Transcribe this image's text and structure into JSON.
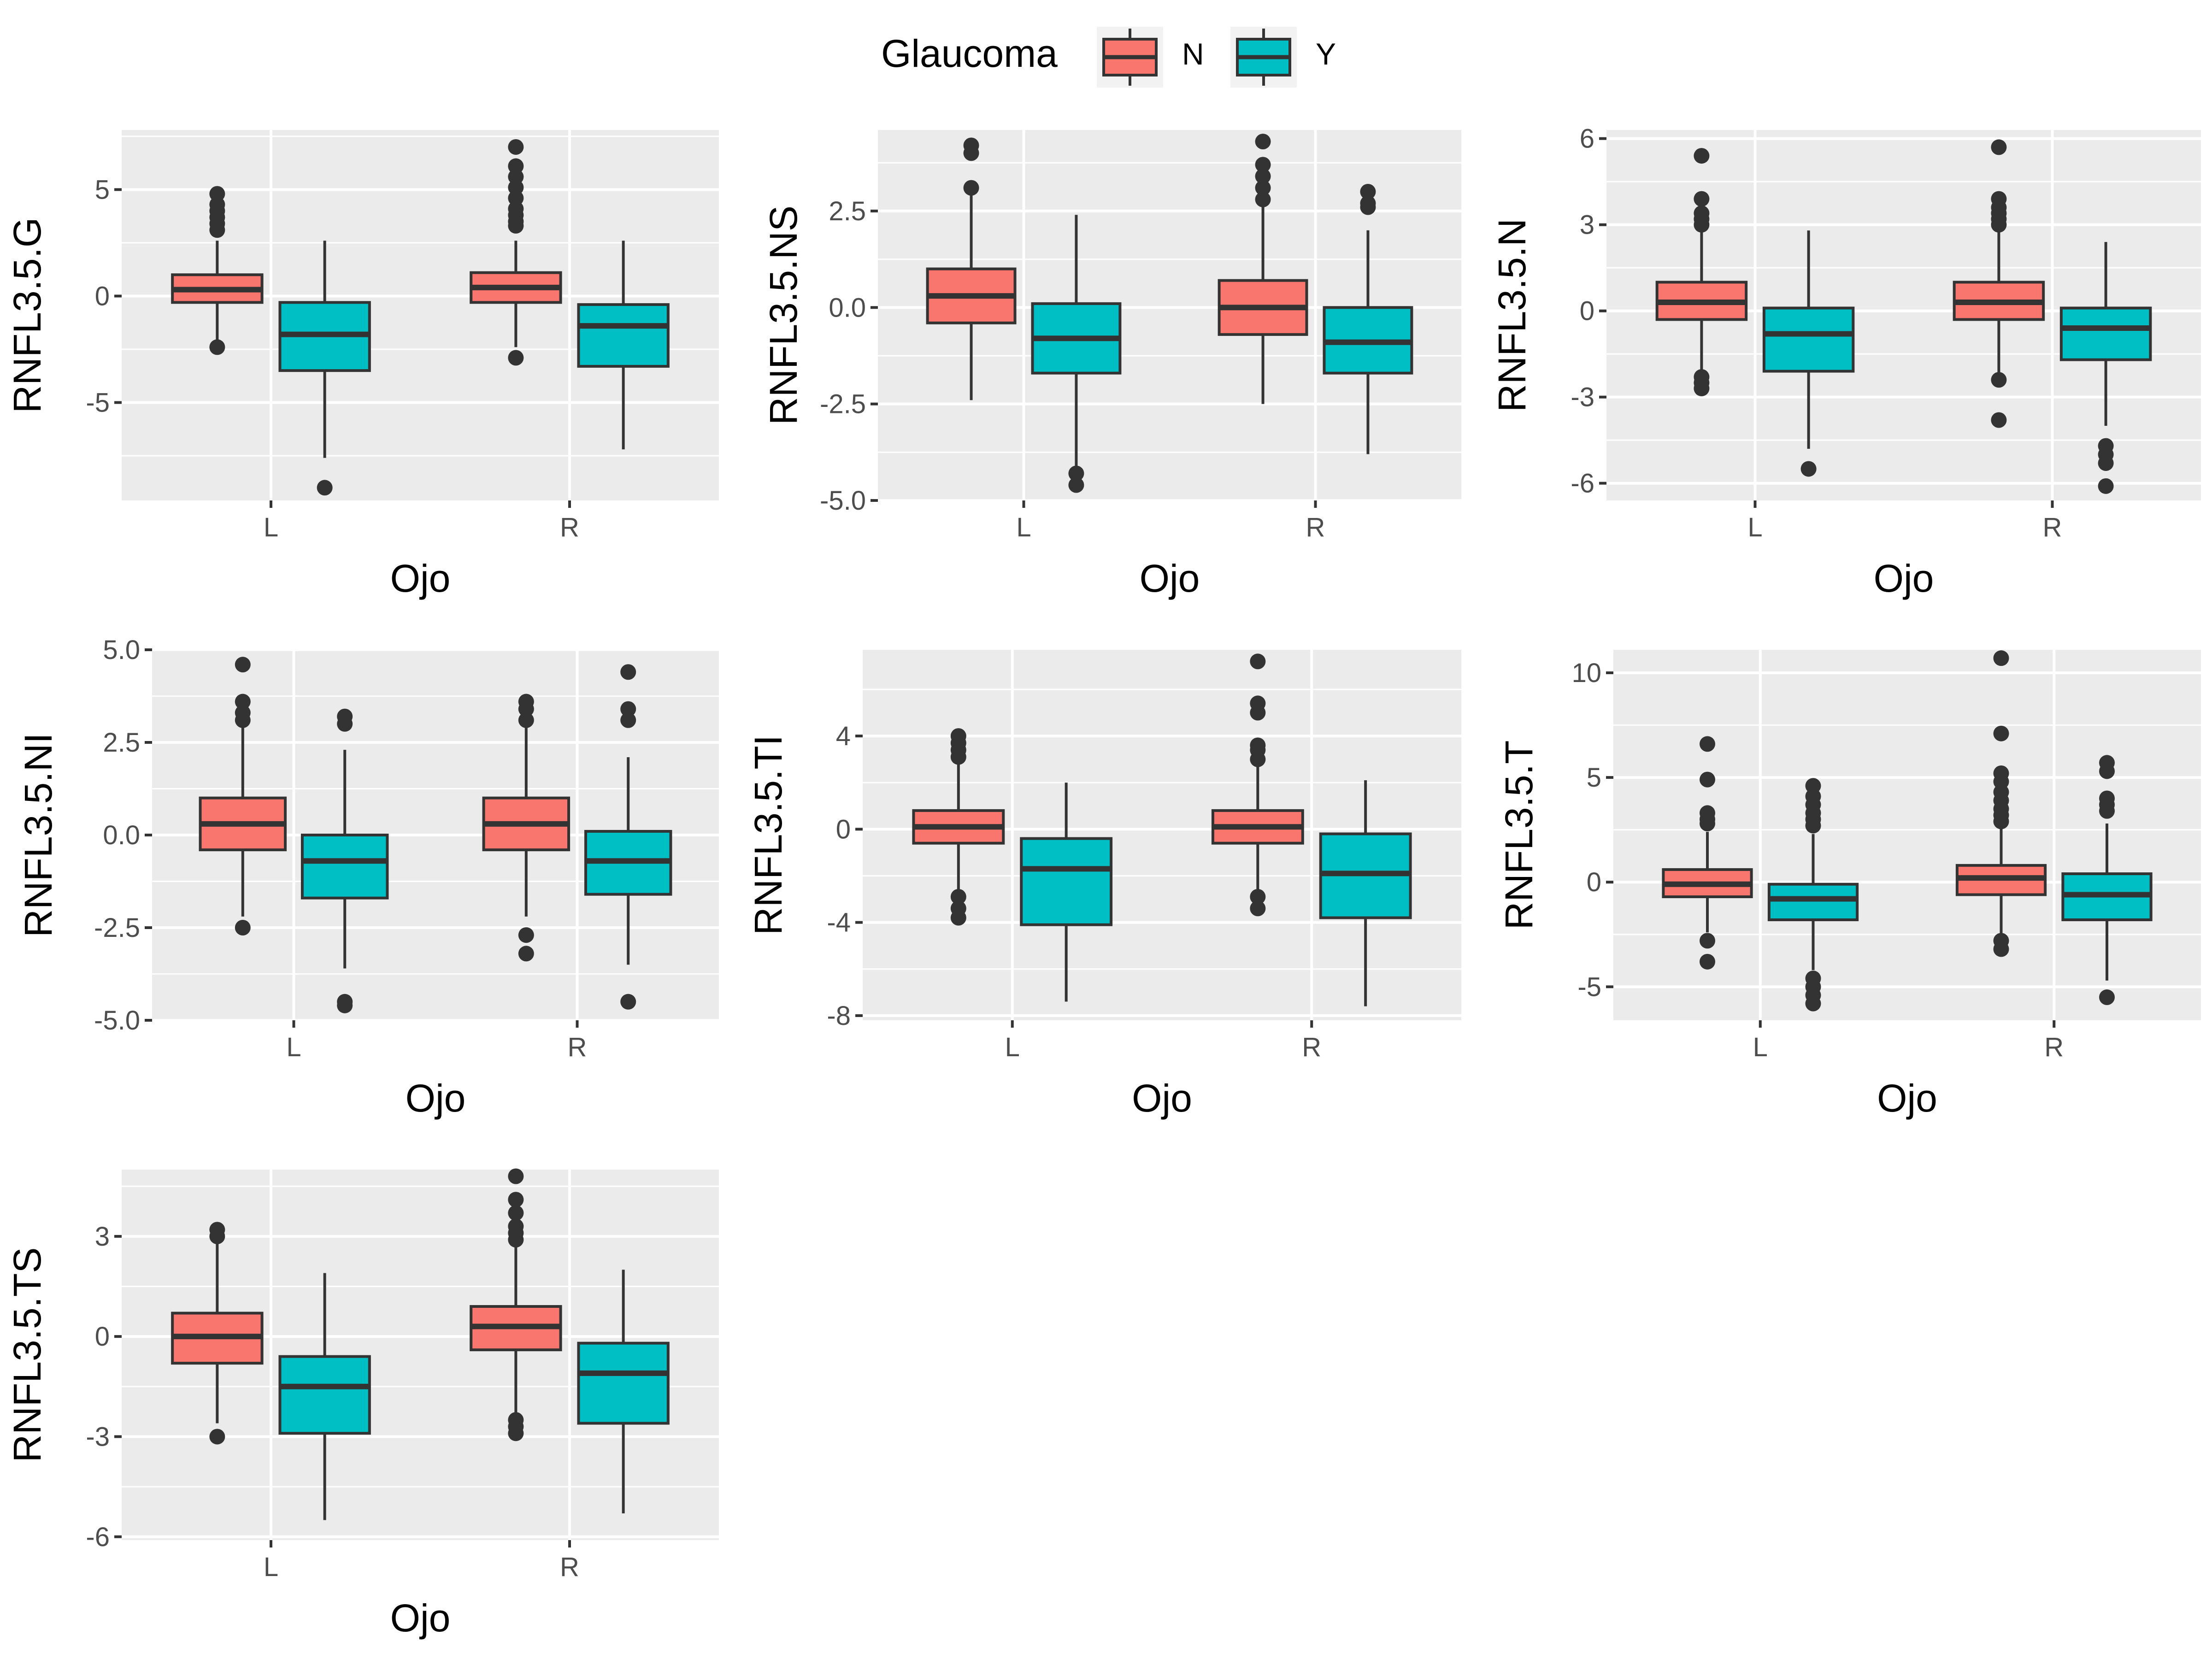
{
  "legend": {
    "title": "Glaucoma",
    "items": [
      {
        "label": "N",
        "color": "#F8766D"
      },
      {
        "label": "Y",
        "color": "#00BFC4"
      }
    ]
  },
  "colors": {
    "panel_bg": "#EBEBEB",
    "grid": "#FFFFFF",
    "box_line": "#333333",
    "tick_text": "#4D4D4D"
  },
  "chart_data": [
    {
      "type": "box",
      "ylabel": "RNFL3.5.G",
      "xlabel": "Ojo",
      "categories": [
        "L",
        "R"
      ],
      "ylim": [
        -9.6,
        7.8
      ],
      "yticks": [
        5,
        0,
        -5
      ],
      "tick_labels": [
        "5",
        "0",
        "-5"
      ],
      "groups": {
        "L": {
          "N": {
            "whisker_low": -2.3,
            "q1": -0.3,
            "median": 0.3,
            "q3": 1.0,
            "whisker_high": 2.6,
            "outliers": [
              4.8,
              4.3,
              4.0,
              3.7,
              3.4,
              3.1,
              -2.4
            ]
          },
          "Y": {
            "whisker_low": -7.6,
            "q1": -3.5,
            "median": -1.8,
            "q3": -0.3,
            "whisker_high": 2.6,
            "outliers": [
              -9.0
            ]
          }
        },
        "R": {
          "N": {
            "whisker_low": -2.4,
            "q1": -0.3,
            "median": 0.4,
            "q3": 1.1,
            "whisker_high": 2.6,
            "outliers": [
              7.0,
              6.1,
              5.6,
              5.1,
              4.6,
              4.1,
              3.8,
              3.5,
              3.3,
              -2.9
            ]
          },
          "Y": {
            "whisker_low": -7.2,
            "q1": -3.3,
            "median": -1.4,
            "q3": -0.4,
            "whisker_high": 2.6,
            "outliers": []
          }
        }
      }
    },
    {
      "type": "box",
      "ylabel": "RNFL3.5.NS",
      "xlabel": "Ojo",
      "categories": [
        "L",
        "R"
      ],
      "ylim": [
        -5.0,
        4.6
      ],
      "yticks": [
        2.5,
        0,
        -2.5,
        -5
      ],
      "tick_labels": [
        "2.5",
        "0.0",
        "-2.5",
        "-5.0"
      ],
      "groups": {
        "L": {
          "N": {
            "whisker_low": -2.4,
            "q1": -0.4,
            "median": 0.3,
            "q3": 1.0,
            "whisker_high": 2.9,
            "outliers": [
              4.2,
              4.0,
              3.1
            ]
          },
          "Y": {
            "whisker_low": -4.2,
            "q1": -1.7,
            "median": -0.8,
            "q3": 0.1,
            "whisker_high": 2.4,
            "outliers": [
              -4.3,
              -4.6
            ]
          }
        },
        "R": {
          "N": {
            "whisker_low": -2.5,
            "q1": -0.7,
            "median": 0.0,
            "q3": 0.7,
            "whisker_high": 2.7,
            "outliers": [
              4.3,
              3.7,
              3.4,
              3.1,
              2.8
            ]
          },
          "Y": {
            "whisker_low": -3.8,
            "q1": -1.7,
            "median": -0.9,
            "q3": 0.0,
            "whisker_high": 2.0,
            "outliers": [
              3.0,
              2.7,
              2.6
            ]
          }
        }
      }
    },
    {
      "type": "box",
      "ylabel": "RNFL3.5.N",
      "xlabel": "Ojo",
      "categories": [
        "L",
        "R"
      ],
      "ylim": [
        -6.6,
        6.3
      ],
      "yticks": [
        6,
        3,
        0,
        -3,
        -6
      ],
      "tick_labels": [
        "6",
        "3",
        "0",
        "-3",
        "-6"
      ],
      "groups": {
        "L": {
          "N": {
            "whisker_low": -2.3,
            "q1": -0.3,
            "median": 0.3,
            "q3": 1.0,
            "whisker_high": 2.8,
            "outliers": [
              5.4,
              3.9,
              3.4,
              3.2,
              3.0,
              -2.3,
              -2.5,
              -2.7
            ]
          },
          "Y": {
            "whisker_low": -4.8,
            "q1": -2.1,
            "median": -0.8,
            "q3": 0.1,
            "whisker_high": 2.8,
            "outliers": [
              -5.5
            ]
          }
        },
        "R": {
          "N": {
            "whisker_low": -2.2,
            "q1": -0.3,
            "median": 0.3,
            "q3": 1.0,
            "whisker_high": 2.8,
            "outliers": [
              5.7,
              3.9,
              3.6,
              3.4,
              3.2,
              3.0,
              -2.4,
              -3.8
            ]
          },
          "Y": {
            "whisker_low": -4.0,
            "q1": -1.7,
            "median": -0.6,
            "q3": 0.1,
            "whisker_high": 2.4,
            "outliers": [
              -4.7,
              -5.0,
              -5.3,
              -6.1
            ]
          }
        }
      }
    },
    {
      "type": "box",
      "ylabel": "RNFL3.5.NI",
      "xlabel": "Ojo",
      "categories": [
        "L",
        "R"
      ],
      "ylim": [
        -5.0,
        5.0
      ],
      "yticks": [
        5,
        2.5,
        0,
        -2.5,
        -5
      ],
      "tick_labels": [
        "5.0",
        "2.5",
        "0.0",
        "-2.5",
        "-5.0"
      ],
      "groups": {
        "L": {
          "N": {
            "whisker_low": -2.2,
            "q1": -0.4,
            "median": 0.3,
            "q3": 1.0,
            "whisker_high": 2.9,
            "outliers": [
              4.6,
              3.6,
              3.3,
              3.1,
              -2.5
            ]
          },
          "Y": {
            "whisker_low": -3.6,
            "q1": -1.7,
            "median": -0.7,
            "q3": 0.0,
            "whisker_high": 2.3,
            "outliers": [
              3.2,
              3.0,
              -4.5,
              -4.6
            ]
          }
        },
        "R": {
          "N": {
            "whisker_low": -2.2,
            "q1": -0.4,
            "median": 0.3,
            "q3": 1.0,
            "whisker_high": 2.9,
            "outliers": [
              3.6,
              3.4,
              3.1,
              -2.7,
              -3.2
            ]
          },
          "Y": {
            "whisker_low": -3.5,
            "q1": -1.6,
            "median": -0.7,
            "q3": 0.1,
            "whisker_high": 2.1,
            "outliers": [
              4.4,
              3.4,
              3.1,
              -4.5
            ]
          }
        }
      }
    },
    {
      "type": "box",
      "ylabel": "RNFL3.5.TI",
      "xlabel": "Ojo",
      "categories": [
        "L",
        "R"
      ],
      "ylim": [
        -8.2,
        7.7
      ],
      "yticks": [
        4,
        0,
        -4,
        -8
      ],
      "tick_labels": [
        "4",
        "0",
        "-4",
        "-8"
      ],
      "groups": {
        "L": {
          "N": {
            "whisker_low": -2.7,
            "q1": -0.6,
            "median": 0.1,
            "q3": 0.8,
            "whisker_high": 2.8,
            "outliers": [
              4.0,
              3.7,
              3.4,
              3.1,
              -2.9,
              -3.4,
              -3.8
            ]
          },
          "Y": {
            "whisker_low": -7.4,
            "q1": -4.1,
            "median": -1.7,
            "q3": -0.4,
            "whisker_high": 2.0,
            "outliers": []
          }
        },
        "R": {
          "N": {
            "whisker_low": -2.6,
            "q1": -0.6,
            "median": 0.1,
            "q3": 0.8,
            "whisker_high": 2.8,
            "outliers": [
              7.2,
              5.4,
              5.0,
              3.6,
              3.4,
              3.0,
              -2.9,
              -3.4
            ]
          },
          "Y": {
            "whisker_low": -7.6,
            "q1": -3.8,
            "median": -1.9,
            "q3": -0.2,
            "whisker_high": 2.1,
            "outliers": []
          }
        }
      }
    },
    {
      "type": "box",
      "ylabel": "RNFL3.5.T",
      "xlabel": "Ojo",
      "categories": [
        "L",
        "R"
      ],
      "ylim": [
        -6.6,
        11.1
      ],
      "yticks": [
        10,
        5,
        0,
        -5
      ],
      "tick_labels": [
        "10",
        "5",
        "0",
        "-5"
      ],
      "groups": {
        "L": {
          "N": {
            "whisker_low": -2.4,
            "q1": -0.7,
            "median": -0.1,
            "q3": 0.6,
            "whisker_high": 2.4,
            "outliers": [
              6.6,
              4.9,
              3.3,
              3.0,
              2.8,
              -2.8,
              -3.8
            ]
          },
          "Y": {
            "whisker_low": -4.2,
            "q1": -1.8,
            "median": -0.8,
            "q3": -0.1,
            "whisker_high": 2.3,
            "outliers": [
              4.6,
              4.1,
              3.7,
              3.3,
              3.0,
              2.7,
              -4.6,
              -5.0,
              -5.4,
              -5.8
            ]
          }
        },
        "R": {
          "N": {
            "whisker_low": -2.5,
            "q1": -0.6,
            "median": 0.2,
            "q3": 0.8,
            "whisker_high": 2.6,
            "outliers": [
              10.7,
              7.1,
              5.2,
              4.8,
              4.3,
              3.9,
              3.5,
              3.2,
              2.9,
              -2.8,
              -3.2
            ]
          },
          "Y": {
            "whisker_low": -4.7,
            "q1": -1.8,
            "median": -0.6,
            "q3": 0.4,
            "whisker_high": 2.8,
            "outliers": [
              5.7,
              5.3,
              4.0,
              3.7,
              3.4,
              -5.5
            ]
          }
        }
      }
    },
    {
      "type": "box",
      "ylabel": "RNFL3.5.TS",
      "xlabel": "Ojo",
      "categories": [
        "L",
        "R"
      ],
      "ylim": [
        -6.1,
        5.0
      ],
      "yticks": [
        3,
        0,
        -3,
        -6
      ],
      "tick_labels": [
        "3",
        "0",
        "-3",
        "-6"
      ],
      "groups": {
        "L": {
          "N": {
            "whisker_low": -2.6,
            "q1": -0.8,
            "median": 0.0,
            "q3": 0.7,
            "whisker_high": 2.9,
            "outliers": [
              3.2,
              3.0,
              -3.0
            ]
          },
          "Y": {
            "whisker_low": -5.5,
            "q1": -2.9,
            "median": -1.5,
            "q3": -0.6,
            "whisker_high": 1.9,
            "outliers": []
          }
        },
        "R": {
          "N": {
            "whisker_low": -2.3,
            "q1": -0.4,
            "median": 0.3,
            "q3": 0.9,
            "whisker_high": 2.8,
            "outliers": [
              4.8,
              4.1,
              3.7,
              3.3,
              3.1,
              2.9,
              -2.5,
              -2.7,
              -2.9
            ]
          },
          "Y": {
            "whisker_low": -5.3,
            "q1": -2.6,
            "median": -1.1,
            "q3": -0.2,
            "whisker_high": 2.0,
            "outliers": []
          }
        }
      }
    }
  ]
}
